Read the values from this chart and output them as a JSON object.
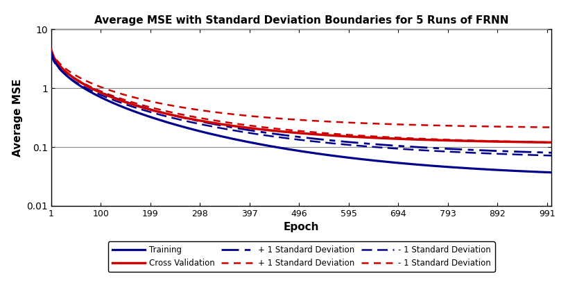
{
  "title": "Average MSE with Standard Deviation Boundaries for 5 Runs of FRNN",
  "xlabel": "Epoch",
  "ylabel": "Average MSE",
  "xlim": [
    1,
    1000
  ],
  "ylim": [
    0.01,
    10
  ],
  "xticks": [
    1,
    100,
    199,
    298,
    397,
    496,
    595,
    694,
    793,
    892,
    991
  ],
  "epochs": 1000,
  "train_color": "#00008B",
  "cv_color": "#CC0000",
  "background_color": "#ffffff",
  "grid_color": "#888888",
  "curves": {
    "train": {
      "a": 5.0,
      "b": 0.6,
      "c": 0.028
    },
    "cv": {
      "a": 5.5,
      "b": 0.6,
      "c": 0.11
    },
    "train_plus": {
      "a": 5.0,
      "b": 0.55,
      "c": 0.065
    },
    "train_minus": {
      "a": 4.5,
      "b": 0.55,
      "c": 0.058
    },
    "cv_plus": {
      "a": 5.5,
      "b": 0.55,
      "c": 0.2
    },
    "cv_minus": {
      "a": 5.0,
      "b": 0.55,
      "c": 0.105
    }
  }
}
